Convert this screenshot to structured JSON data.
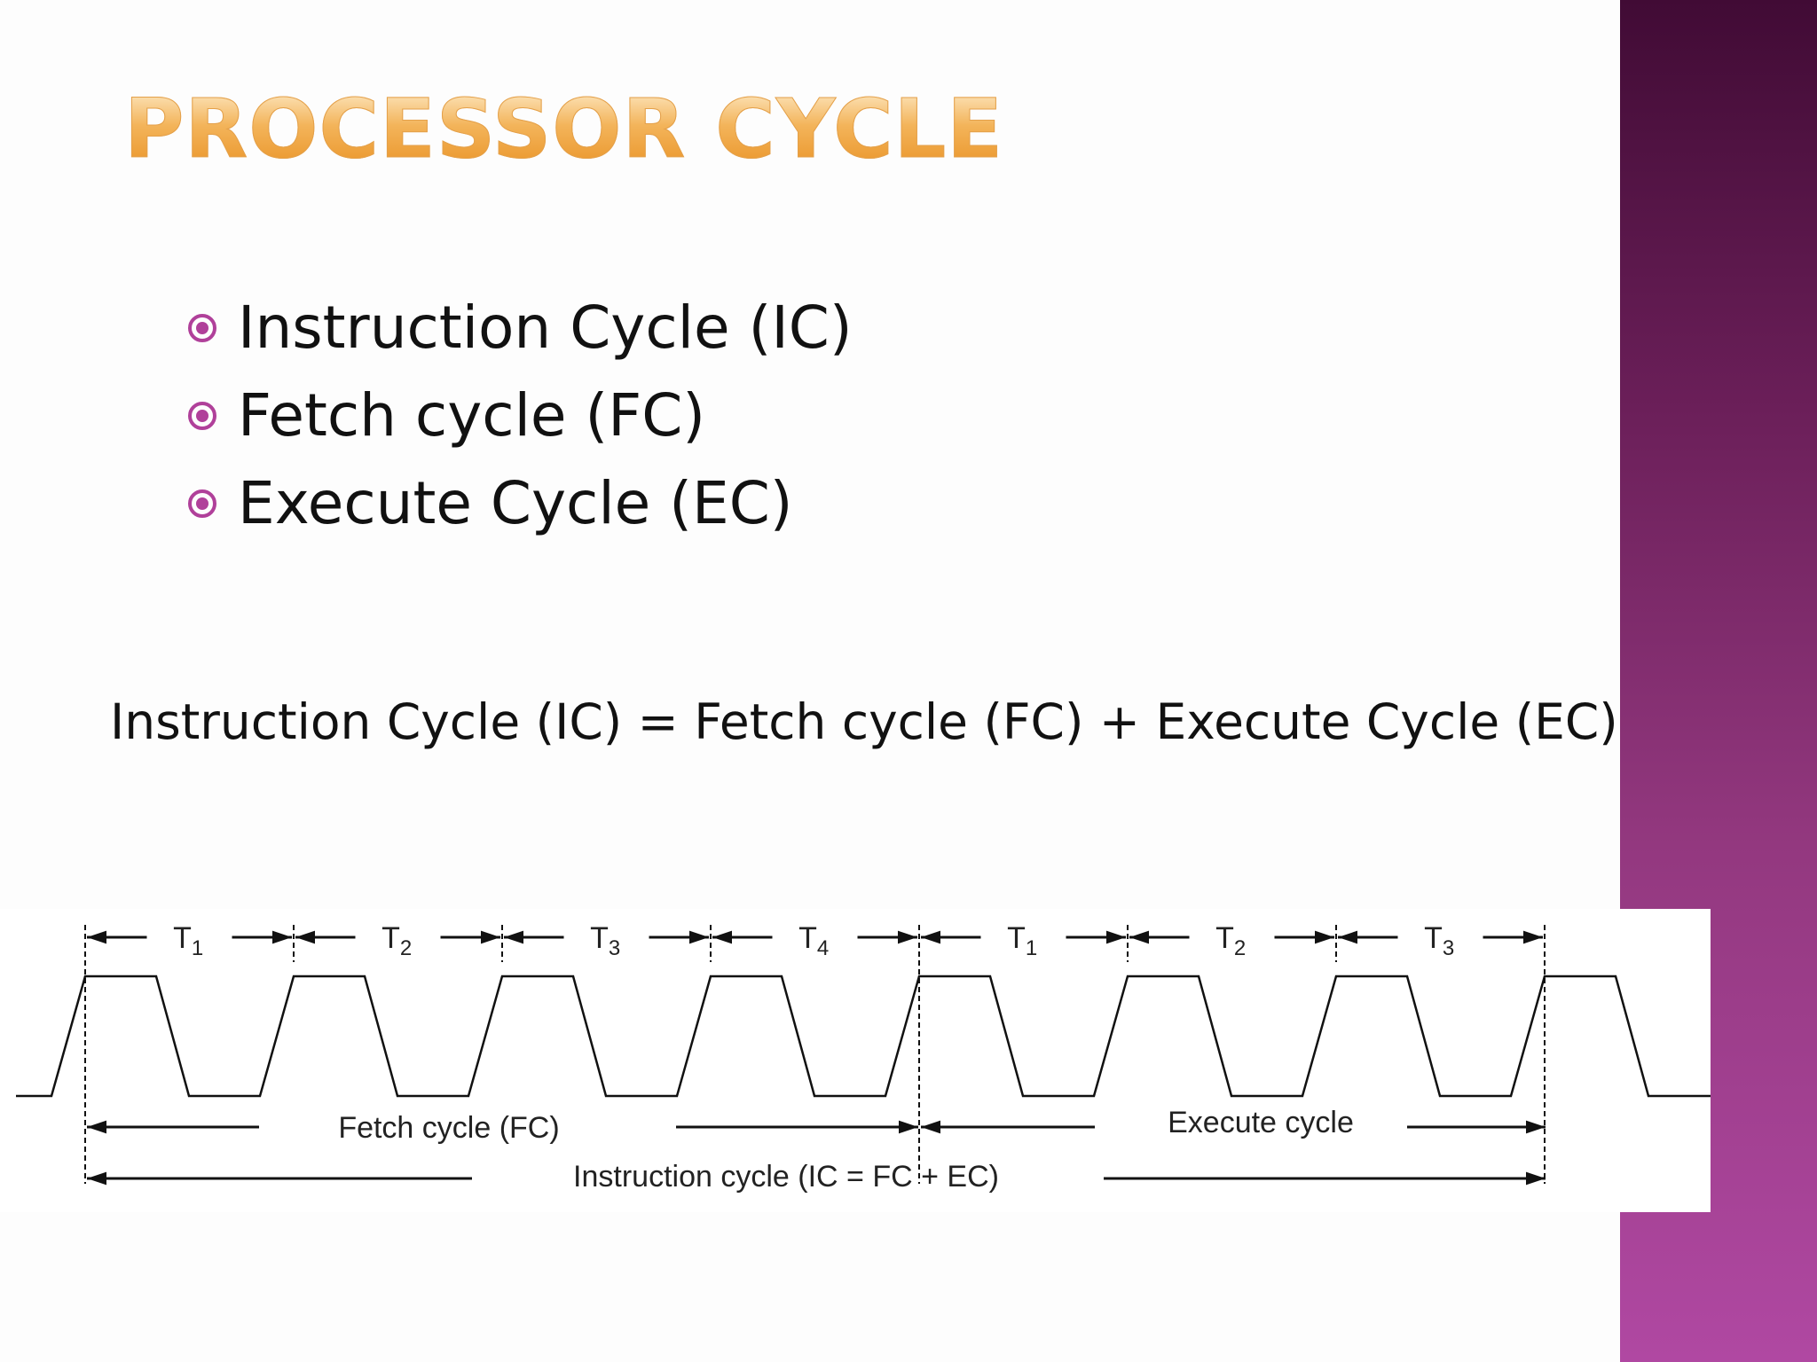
{
  "slide": {
    "title": "PROCESSOR CYCLE",
    "bullets": [
      {
        "text": "Instruction Cycle (IC)",
        "icon": "circled-dot-bullet-icon"
      },
      {
        "text": "Fetch cycle (FC)",
        "icon": "circled-dot-bullet-icon"
      },
      {
        "text": "Execute Cycle (EC)",
        "icon": "circled-dot-bullet-icon"
      }
    ],
    "equation": "Instruction Cycle (IC) = Fetch cycle (FC) + Execute Cycle (EC)",
    "colors": {
      "title_gradient_top": "#fde8c2",
      "title_gradient_bottom": "#ea9428",
      "bullet": "#b0409a",
      "side_band_top": "#410b35",
      "side_band_bottom": "#b048a2"
    }
  },
  "timing_diagram": {
    "states": [
      {
        "letter": "T",
        "sub": "1"
      },
      {
        "letter": "T",
        "sub": "2"
      },
      {
        "letter": "T",
        "sub": "3"
      },
      {
        "letter": "T",
        "sub": "4"
      },
      {
        "letter": "T",
        "sub": "1"
      },
      {
        "letter": "T",
        "sub": "2"
      },
      {
        "letter": "T",
        "sub": "3"
      }
    ],
    "fetch_label": "Fetch cycle (FC)",
    "execute_label": "Execute cycle",
    "instruction_label": "Instruction cycle (IC = FC + EC)",
    "fetch_states": 4,
    "execute_states": 3
  }
}
